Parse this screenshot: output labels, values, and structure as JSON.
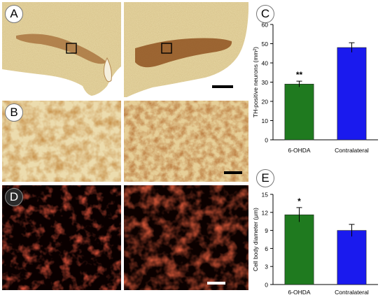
{
  "panels": {
    "A": {
      "label": "A"
    },
    "B": {
      "label": "B"
    },
    "C": {
      "label": "C"
    },
    "D": {
      "label": "D"
    },
    "E": {
      "label": "E"
    }
  },
  "colors": {
    "green": "#1f7a1f",
    "blue": "#1a1aee",
    "stain_bg": "#ead9a7",
    "stain_dark": "#7a3a12",
    "fluor": "#c41a0c"
  },
  "chart_data": [
    {
      "id": "C",
      "type": "bar",
      "title": "",
      "xlabel": "",
      "ylabel": "TH-positive neurons (mm²)",
      "categories": [
        "6-OHDA",
        "Contralateral"
      ],
      "values": [
        29,
        48
      ],
      "errors": [
        1.5,
        2.5
      ],
      "bar_colors": [
        "#1f7a1f",
        "#1a1aee"
      ],
      "ylim": [
        0,
        60
      ],
      "yticks": [
        "0",
        "10",
        "20",
        "30",
        "40",
        "50",
        "60"
      ],
      "annotations": [
        "**",
        ""
      ],
      "grid": false
    },
    {
      "id": "E",
      "type": "bar",
      "title": "",
      "xlabel": "",
      "ylabel": "Cell body diameter (μm)",
      "categories": [
        "6-OHDA",
        "Contralateral"
      ],
      "values": [
        11.6,
        9.0
      ],
      "errors": [
        1.2,
        1.0
      ],
      "bar_colors": [
        "#1f7a1f",
        "#1a1aee"
      ],
      "ylim": [
        0,
        15
      ],
      "yticks": [
        "0",
        "3",
        "6",
        "9",
        "12",
        "15"
      ],
      "annotations": [
        "*",
        ""
      ],
      "grid": false
    }
  ]
}
